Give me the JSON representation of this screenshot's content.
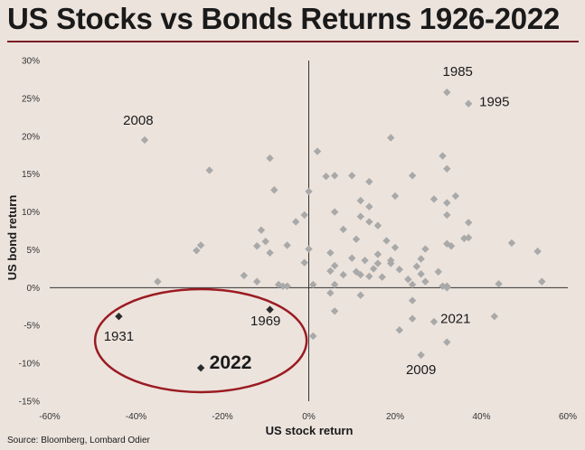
{
  "title": "US Stocks vs Bonds Returns 1926-2022",
  "source": "Source: Bloomberg, Lombard Odier",
  "chart_data": {
    "type": "scatter",
    "title": "US Stocks vs Bonds Returns 1926-2022",
    "xlabel": "US stock return",
    "ylabel": "US bond return",
    "xlim": [
      -0.6,
      0.6
    ],
    "ylim": [
      -0.15,
      0.3
    ],
    "x_ticks": [
      "-60%",
      "-40%",
      "-20%",
      "0%",
      "20%",
      "40%",
      "60%"
    ],
    "y_ticks": [
      "30%",
      "25%",
      "20%",
      "15%",
      "10%",
      "5%",
      "0%",
      "-5%",
      "-10%",
      "-15%"
    ],
    "grid": false,
    "colors": {
      "points": "#a9a9a9",
      "highlight_points": "#2b2b2b",
      "ellipse": "#9b1b22",
      "title_rule": "#7a1e24",
      "background": "#ece3dd"
    },
    "series": [
      {
        "points": [
          [
            0.32,
            0.258
          ],
          [
            0.37,
            0.243
          ],
          [
            -0.38,
            0.195
          ],
          [
            0.19,
            0.198
          ],
          [
            -0.23,
            0.155
          ],
          [
            -0.09,
            0.171
          ],
          [
            0.02,
            0.18
          ],
          [
            0.31,
            0.174
          ],
          [
            0.32,
            0.157
          ],
          [
            0.24,
            0.148
          ],
          [
            0.04,
            0.147
          ],
          [
            0.06,
            0.148
          ],
          [
            0.1,
            0.148
          ],
          [
            0.14,
            0.14
          ],
          [
            -0.08,
            0.129
          ],
          [
            0.0,
            0.127
          ],
          [
            0.34,
            0.121
          ],
          [
            0.12,
            0.115
          ],
          [
            0.2,
            0.121
          ],
          [
            0.29,
            0.117
          ],
          [
            0.32,
            0.112
          ],
          [
            0.14,
            0.107
          ],
          [
            0.06,
            0.1
          ],
          [
            0.12,
            0.094
          ],
          [
            0.32,
            0.096
          ],
          [
            -0.01,
            0.096
          ],
          [
            -0.03,
            0.087
          ],
          [
            0.37,
            0.086
          ],
          [
            0.14,
            0.087
          ],
          [
            0.16,
            0.082
          ],
          [
            -0.11,
            0.076
          ],
          [
            0.08,
            0.077
          ],
          [
            0.36,
            0.065
          ],
          [
            0.37,
            0.066
          ],
          [
            0.11,
            0.064
          ],
          [
            0.18,
            0.062
          ],
          [
            0.47,
            0.059
          ],
          [
            -0.12,
            0.055
          ],
          [
            -0.05,
            0.056
          ],
          [
            0.0,
            0.051
          ],
          [
            -0.25,
            0.056
          ],
          [
            -0.26,
            0.049
          ],
          [
            -0.1,
            0.061
          ],
          [
            0.32,
            0.058
          ],
          [
            0.33,
            0.055
          ],
          [
            0.2,
            0.053
          ],
          [
            0.27,
            0.051
          ],
          [
            0.53,
            0.048
          ],
          [
            0.05,
            0.046
          ],
          [
            0.16,
            0.044
          ],
          [
            -0.09,
            0.046
          ],
          [
            0.1,
            0.039
          ],
          [
            0.13,
            0.036
          ],
          [
            0.26,
            0.038
          ],
          [
            0.19,
            0.036
          ],
          [
            0.16,
            0.032
          ],
          [
            0.19,
            0.032
          ],
          [
            -0.01,
            0.033
          ],
          [
            0.06,
            0.029
          ],
          [
            0.25,
            0.028
          ],
          [
            0.15,
            0.025
          ],
          [
            0.21,
            0.024
          ],
          [
            0.05,
            0.022
          ],
          [
            0.11,
            0.021
          ],
          [
            0.3,
            0.021
          ],
          [
            0.26,
            0.018
          ],
          [
            0.08,
            0.017
          ],
          [
            0.12,
            0.017
          ],
          [
            0.14,
            0.015
          ],
          [
            0.17,
            0.014
          ],
          [
            0.23,
            0.011
          ],
          [
            -0.15,
            0.016
          ],
          [
            -0.35,
            0.008
          ],
          [
            -0.12,
            0.008
          ],
          [
            -0.07,
            0.004
          ],
          [
            -0.05,
            0.002
          ],
          [
            -0.06,
            0.002
          ],
          [
            0.01,
            0.004
          ],
          [
            0.06,
            0.004
          ],
          [
            0.24,
            0.004
          ],
          [
            0.27,
            0.008
          ],
          [
            0.32,
            0.002
          ],
          [
            0.32,
            0.0
          ],
          [
            0.44,
            0.005
          ],
          [
            0.54,
            0.008
          ],
          [
            0.31,
            0.002
          ],
          [
            0.05,
            -0.007
          ],
          [
            0.12,
            -0.01
          ],
          [
            0.24,
            -0.017
          ],
          [
            0.06,
            -0.031
          ],
          [
            0.29,
            -0.045
          ],
          [
            0.21,
            -0.056
          ],
          [
            0.24,
            -0.041
          ],
          [
            0.43,
            -0.038
          ],
          [
            0.32,
            -0.072
          ],
          [
            0.26,
            -0.089
          ],
          [
            0.01,
            -0.064
          ]
        ]
      },
      {
        "highlight": true,
        "points": [
          [
            -0.44,
            -0.038
          ],
          [
            -0.09,
            -0.029
          ],
          [
            -0.25,
            -0.106
          ]
        ]
      }
    ],
    "annotations": [
      {
        "text": "1985",
        "x": 0.31,
        "y": 0.28,
        "style": "normal"
      },
      {
        "text": "1995",
        "x": 0.395,
        "y": 0.24,
        "style": "normal"
      },
      {
        "text": "2008",
        "x": -0.43,
        "y": 0.215,
        "style": "normal"
      },
      {
        "text": "1969",
        "x": -0.135,
        "y": -0.05,
        "style": "normal"
      },
      {
        "text": "1931",
        "x": -0.475,
        "y": -0.07,
        "style": "normal"
      },
      {
        "text": "2022",
        "x": -0.23,
        "y": -0.107,
        "style": "bold"
      },
      {
        "text": "2021",
        "x": 0.305,
        "y": -0.047,
        "style": "normal"
      },
      {
        "text": "2009",
        "x": 0.225,
        "y": -0.114,
        "style": "normal"
      }
    ],
    "highlight_region": {
      "shape": "ellipse",
      "cx": -0.25,
      "cy": -0.07,
      "rx": 0.245,
      "ry": 0.068
    }
  }
}
